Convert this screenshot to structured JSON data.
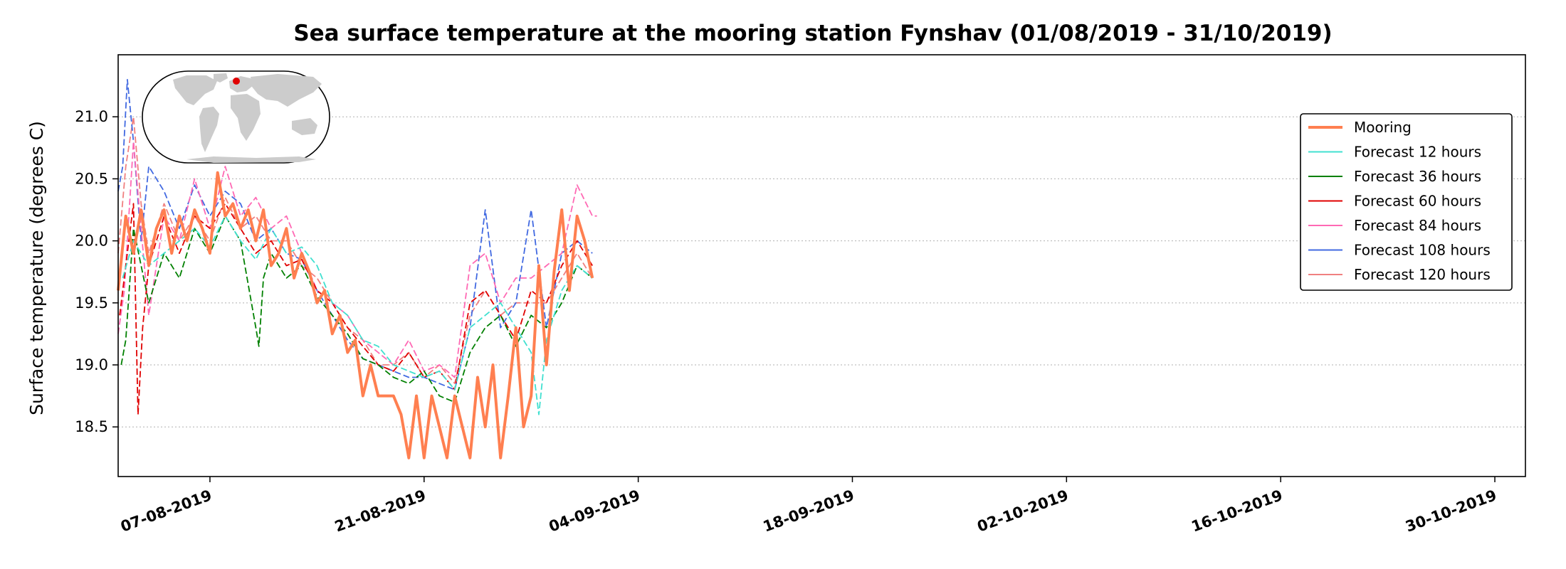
{
  "chart_data": {
    "type": "line",
    "title": "Sea surface temperature at the mooring station Fynshav (01/08/2019 - 31/10/2019)",
    "xlabel": "",
    "ylabel": "Surface temperature (degrees C)",
    "xlim_days": [
      0,
      92
    ],
    "ylim": [
      18.1,
      21.5
    ],
    "yticks": [
      18.5,
      19.0,
      19.5,
      20.0,
      20.5,
      21.0
    ],
    "ytick_labels": [
      "18.5",
      "19.0",
      "19.5",
      "20.0",
      "20.5",
      "21.0"
    ],
    "xticks_days": [
      6,
      20,
      34,
      48,
      62,
      76,
      90
    ],
    "xtick_labels": [
      "07-08-2019",
      "21-08-2019",
      "04-09-2019",
      "18-09-2019",
      "02-10-2019",
      "16-10-2019",
      "30-10-2019"
    ],
    "grid": "horizontal dotted",
    "legend_position": "upper-right",
    "inset": "world map with station marker",
    "series": [
      {
        "name": "Mooring",
        "color": "#ff7f50",
        "style": "solid-thick",
        "x": [
          0,
          0.5,
          1,
          1.5,
          2,
          2.5,
          3,
          3.5,
          4,
          4.5,
          5,
          5.5,
          6,
          6.5,
          7,
          7.5,
          8,
          8.5,
          9,
          9.5,
          10,
          10.5,
          11,
          11.5,
          12,
          12.5,
          13,
          13.5,
          14,
          14.5,
          15,
          15.5,
          16,
          16.5,
          17,
          17.5,
          18,
          18.5,
          19,
          19.5,
          20,
          20.5,
          21,
          21.5,
          22,
          22.5,
          23,
          23.5,
          24,
          24.5,
          25,
          25.5,
          26,
          26.5,
          27,
          27.5,
          28,
          28.5,
          29,
          29.5,
          30,
          30.5,
          31
        ],
        "values": [
          19.6,
          20.2,
          19.9,
          20.25,
          19.8,
          20.1,
          20.25,
          19.9,
          20.2,
          20.0,
          20.25,
          20.1,
          19.9,
          20.55,
          20.2,
          20.3,
          20.1,
          20.25,
          20.0,
          20.25,
          19.8,
          19.9,
          20.1,
          19.7,
          19.9,
          19.75,
          19.5,
          19.6,
          19.25,
          19.4,
          19.1,
          19.2,
          18.75,
          19.0,
          18.75,
          18.75,
          18.75,
          18.6,
          18.25,
          18.75,
          18.25,
          18.75,
          18.5,
          18.25,
          18.75,
          18.5,
          18.25,
          18.9,
          18.5,
          19.0,
          18.25,
          18.75,
          19.3,
          18.5,
          18.75,
          19.8,
          19.0,
          19.75,
          20.25,
          19.6,
          20.2,
          20.0,
          19.7
        ]
      },
      {
        "name": "Forecast 12 hours",
        "color": "#40e0d0",
        "style": "dashed",
        "x": [
          0.3,
          1,
          2,
          3,
          4,
          5,
          6,
          7,
          8,
          9,
          10,
          11,
          12,
          13,
          14,
          15,
          16,
          17,
          18,
          19,
          20,
          21,
          22,
          23,
          24,
          25,
          26,
          27,
          27.5,
          28,
          29,
          30,
          31
        ],
        "values": [
          19.7,
          20.0,
          19.8,
          19.9,
          20.0,
          20.1,
          19.95,
          20.2,
          20.0,
          19.85,
          20.1,
          19.9,
          19.95,
          19.8,
          19.5,
          19.4,
          19.2,
          19.15,
          19.0,
          18.95,
          18.9,
          18.95,
          18.8,
          19.3,
          19.4,
          19.5,
          19.3,
          19.1,
          18.6,
          19.2,
          19.6,
          19.8,
          19.7
        ]
      },
      {
        "name": "Forecast 36 hours",
        "color": "#008000",
        "style": "dashed",
        "x": [
          0.2,
          0.5,
          1,
          2,
          3,
          4,
          5,
          6,
          7,
          8,
          9,
          9.2,
          9.5,
          10,
          11,
          12,
          13,
          14,
          15,
          16,
          17,
          18,
          19,
          20,
          21,
          22,
          23,
          24,
          25,
          26,
          27,
          28,
          29,
          30,
          31
        ],
        "values": [
          19.0,
          19.2,
          20.1,
          19.5,
          19.9,
          19.7,
          20.1,
          19.9,
          20.2,
          20.0,
          19.3,
          19.15,
          19.7,
          19.9,
          19.7,
          19.8,
          19.55,
          19.4,
          19.25,
          19.05,
          19.0,
          18.9,
          18.85,
          18.95,
          18.75,
          18.7,
          19.1,
          19.3,
          19.4,
          19.15,
          19.4,
          19.3,
          19.5,
          19.8,
          19.7
        ]
      },
      {
        "name": "Forecast 60 hours",
        "color": "#e00000",
        "style": "dashed",
        "x": [
          0.1,
          0.5,
          1,
          1.3,
          1.6,
          2,
          3,
          4,
          5,
          6,
          7,
          8,
          9,
          10,
          11,
          12,
          13,
          14,
          15,
          16,
          17,
          18,
          19,
          20,
          21,
          22,
          23,
          24,
          25,
          26,
          27,
          28,
          29,
          30,
          31
        ],
        "values": [
          19.4,
          19.8,
          20.3,
          18.6,
          19.3,
          19.8,
          20.2,
          19.9,
          20.2,
          20.1,
          20.3,
          20.1,
          19.9,
          20.0,
          19.8,
          19.85,
          19.6,
          19.5,
          19.3,
          19.15,
          19.0,
          18.95,
          19.1,
          18.9,
          18.95,
          18.8,
          19.5,
          19.6,
          19.4,
          19.2,
          19.6,
          19.5,
          19.8,
          20.0,
          19.8
        ]
      },
      {
        "name": "Forecast 84 hours",
        "color": "#ff69b4",
        "style": "dashed",
        "x": [
          0,
          0.4,
          1,
          1.5,
          2,
          3,
          4,
          5,
          6,
          7,
          8,
          9,
          10,
          11,
          12,
          13,
          14,
          15,
          16,
          17,
          18,
          19,
          20,
          21,
          22,
          23,
          24,
          25,
          26,
          27,
          28,
          29,
          30,
          31,
          31.3
        ],
        "values": [
          19.25,
          19.6,
          20.8,
          20.1,
          19.4,
          20.2,
          20.0,
          20.5,
          20.1,
          20.6,
          20.2,
          20.35,
          20.1,
          20.2,
          19.9,
          19.6,
          19.5,
          19.4,
          19.2,
          19.1,
          19.0,
          19.2,
          18.95,
          19.0,
          18.9,
          19.8,
          19.9,
          19.5,
          19.7,
          19.7,
          19.8,
          19.9,
          20.45,
          20.2,
          20.2
        ]
      },
      {
        "name": "Forecast 108 hours",
        "color": "#4169e1",
        "style": "dashed",
        "x": [
          0,
          0.3,
          0.6,
          1,
          1.5,
          2,
          3,
          4,
          5,
          6,
          7,
          8,
          9,
          10,
          11,
          12,
          13,
          14,
          15,
          16,
          17,
          18,
          19,
          20,
          21,
          22,
          23,
          24,
          25,
          26,
          27,
          28,
          29,
          30,
          31
        ],
        "values": [
          20.4,
          20.6,
          21.3,
          20.8,
          20.0,
          20.6,
          20.4,
          20.1,
          20.45,
          20.2,
          20.4,
          20.3,
          20.0,
          20.1,
          19.9,
          19.85,
          19.6,
          19.4,
          19.2,
          19.05,
          19.0,
          18.95,
          18.9,
          18.9,
          18.85,
          18.8,
          19.3,
          20.25,
          19.3,
          19.5,
          20.25,
          19.3,
          19.9,
          20.0,
          19.9
        ]
      },
      {
        "name": "Forecast 120 hours",
        "color": "#f08080",
        "style": "dashed",
        "x": [
          0,
          0.5,
          1,
          1.5,
          2,
          3,
          4,
          5,
          6,
          7,
          8,
          9,
          10,
          11,
          12,
          13,
          14,
          15,
          16,
          17,
          18,
          19,
          20,
          21,
          22,
          23,
          24,
          25,
          26,
          27,
          28,
          29,
          30,
          31
        ],
        "values": [
          19.9,
          20.6,
          21.0,
          20.3,
          19.9,
          20.3,
          20.0,
          20.2,
          20.0,
          20.35,
          20.1,
          20.2,
          20.0,
          20.0,
          19.8,
          19.7,
          19.5,
          19.3,
          19.2,
          19.0,
          19.0,
          19.1,
          18.9,
          19.0,
          18.85,
          19.4,
          19.6,
          19.4,
          19.5,
          19.5,
          19.5,
          19.7,
          19.9,
          19.7
        ]
      }
    ]
  },
  "colors": {
    "axis": "#000000",
    "grid": "#b0b0b0",
    "map_land": "#cccccc",
    "station_marker": "#e00000"
  }
}
